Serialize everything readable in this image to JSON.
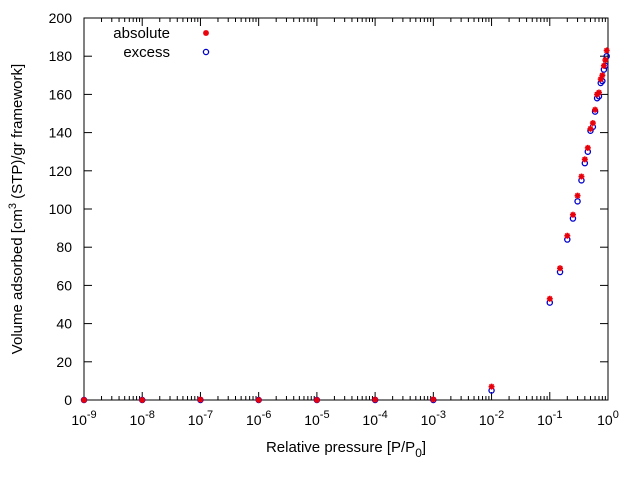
{
  "chart_data": {
    "type": "scatter",
    "xlabel_main": "Relative pressure [P/P",
    "xlabel_sub": "0",
    "xlabel_end": "]",
    "ylabel_pre": "Volume adsorbed [cm",
    "ylabel_sup": "3",
    "ylabel_post": " (STP)/gr framework]",
    "xscale": "log",
    "xlim": [
      1e-09,
      1
    ],
    "ylim": [
      0,
      200
    ],
    "grid": false,
    "legend_position": "top-left",
    "x_ticks": [
      {
        "value": 1e-09,
        "base": "10",
        "exp": "-9"
      },
      {
        "value": 1e-08,
        "base": "10",
        "exp": "-8"
      },
      {
        "value": 1e-07,
        "base": "10",
        "exp": "-7"
      },
      {
        "value": 1e-06,
        "base": "10",
        "exp": "-6"
      },
      {
        "value": 1e-05,
        "base": "10",
        "exp": "-5"
      },
      {
        "value": 0.0001,
        "base": "10",
        "exp": "-4"
      },
      {
        "value": 0.001,
        "base": "10",
        "exp": "-3"
      },
      {
        "value": 0.01,
        "base": "10",
        "exp": "-2"
      },
      {
        "value": 0.1,
        "base": "10",
        "exp": "-1"
      },
      {
        "value": 1,
        "base": "10",
        "exp": "0"
      }
    ],
    "y_ticks": [
      "0",
      "20",
      "40",
      "60",
      "80",
      "100",
      "120",
      "140",
      "160",
      "180",
      "200"
    ],
    "series": [
      {
        "name": "absolute",
        "marker": "star",
        "color": "#e8000b",
        "x": [
          1e-09,
          1e-08,
          1e-07,
          1e-06,
          1e-05,
          0.0001,
          0.001,
          0.01,
          0.1,
          0.15,
          0.2,
          0.25,
          0.3,
          0.35,
          0.4,
          0.45,
          0.5,
          0.55,
          0.6,
          0.65,
          0.7,
          0.75,
          0.8,
          0.85,
          0.9,
          0.95
        ],
        "y": [
          0,
          0,
          0.2,
          0,
          0,
          0.2,
          0.3,
          7,
          53,
          69,
          86,
          97,
          107,
          117,
          126,
          132,
          142,
          145,
          152,
          160,
          161,
          168,
          170,
          175,
          178,
          183
        ]
      },
      {
        "name": "excess",
        "marker": "open-circle",
        "color": "#0000cc",
        "x": [
          1e-09,
          1e-08,
          1e-07,
          1e-06,
          1e-05,
          0.0001,
          0.001,
          0.01,
          0.1,
          0.15,
          0.2,
          0.25,
          0.3,
          0.35,
          0.4,
          0.45,
          0.5,
          0.55,
          0.6,
          0.65,
          0.7,
          0.75,
          0.8,
          0.85,
          0.9,
          0.95
        ],
        "y": [
          0,
          0,
          0,
          0,
          0,
          0,
          0,
          5,
          51,
          67,
          84,
          95,
          104,
          115,
          124,
          130,
          141,
          143,
          151,
          158,
          159,
          166,
          167,
          173,
          175,
          180
        ]
      }
    ]
  }
}
